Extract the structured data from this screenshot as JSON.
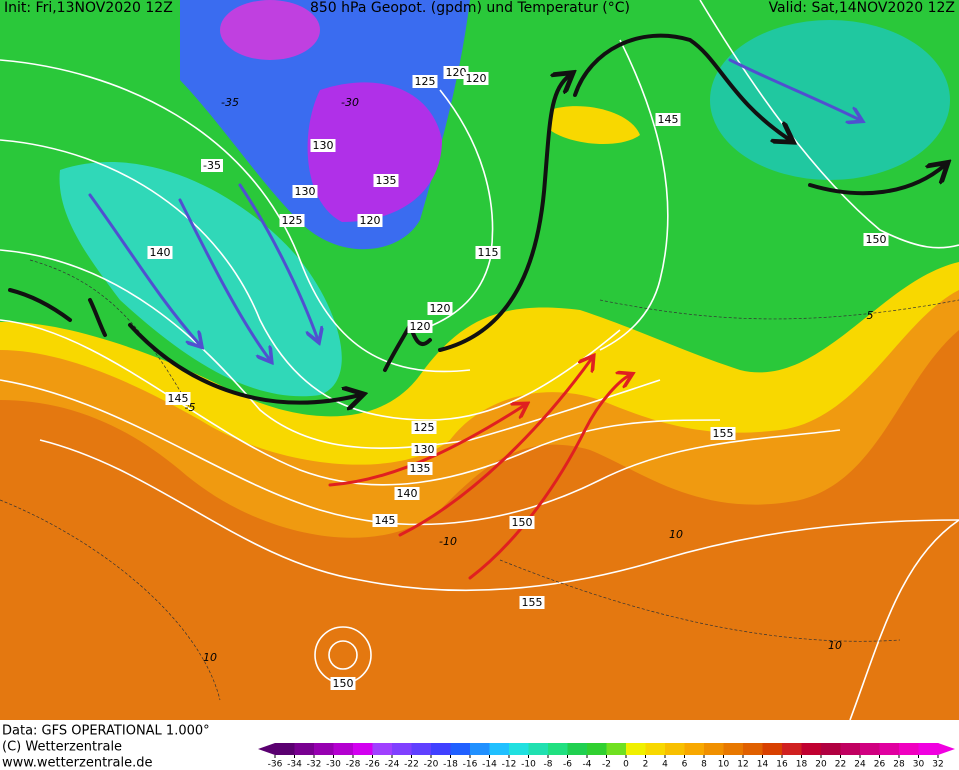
{
  "header": {
    "init": "Init: Fri,13NOV2020 12Z",
    "title": "850 hPa Geopot. (gpdm) und Temperatur (°C)",
    "valid": "Valid: Sat,14NOV2020 12Z"
  },
  "contour_labels": [
    "125",
    "120",
    "120",
    "130",
    "135",
    "130",
    "125",
    "120",
    "115",
    "120",
    "120",
    "140",
    "145",
    "125",
    "130",
    "135",
    "140",
    "145",
    "150",
    "155",
    "150",
    "145",
    "150",
    "155",
    "-35"
  ],
  "temperature_labels": [
    "10",
    "10",
    "10",
    "-10",
    "-5",
    "5",
    "-35",
    "-30"
  ],
  "footer": {
    "data": "Data: GFS OPERATIONAL 1.000°",
    "copyright": "(C) Wetterzentrale",
    "url": "www.wetterzentrale.de"
  },
  "colorbar": {
    "ticks": [
      -36,
      -34,
      -32,
      -30,
      -28,
      -26,
      -24,
      -22,
      -20,
      -18,
      -16,
      -14,
      -12,
      -10,
      -8,
      -6,
      -4,
      -2,
      0,
      2,
      4,
      6,
      8,
      10,
      12,
      14,
      16,
      18,
      20,
      22,
      24,
      26,
      28,
      30,
      32
    ],
    "colors": [
      "#5a0070",
      "#780090",
      "#9600b0",
      "#b400d0",
      "#d200f0",
      "#a040ff",
      "#8040ff",
      "#6040ff",
      "#4040ff",
      "#2060ff",
      "#2090ff",
      "#20c0ff",
      "#20e0e0",
      "#20e0b0",
      "#20e080",
      "#20d050",
      "#30d030",
      "#70e020",
      "#f0f000",
      "#f8d800",
      "#f8c000",
      "#f8a800",
      "#f09000",
      "#e87800",
      "#e06000",
      "#d84000",
      "#d02020",
      "#c00030",
      "#b00040",
      "#c00060",
      "#d00080",
      "#e000a0",
      "#f000c0",
      "#f000e0"
    ]
  }
}
